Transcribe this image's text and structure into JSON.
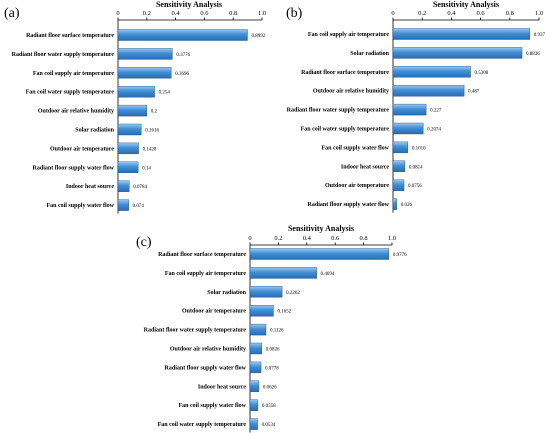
{
  "chart_data": [
    {
      "type": "bar",
      "orientation": "horizontal",
      "panel_label": "(a)",
      "title": "Sensitivity Analysis",
      "xlim": [
        0,
        1.0
      ],
      "ticks": [
        "0",
        "0.2",
        "0.4",
        "0.6",
        "0.8",
        "1.0"
      ],
      "color": "#3f8fd6",
      "categories": [
        "Radiant floor surface temperature",
        "Radiant floor water supply temperature",
        "Fan coil supply air temperature",
        "Fan coil water supply temperature",
        "Outdoor air relative humidity",
        "Solar radiation",
        "Outdoor air temperature",
        "Radiant floor supply water flow",
        "Indoor heat source",
        "Fan coil supply water flow"
      ],
      "values": [
        0.8992,
        0.3776,
        0.3696,
        0.254,
        0.2,
        0.1616,
        0.1428,
        0.14,
        0.0784,
        0.074
      ],
      "value_labels": [
        "0.8992",
        "0.3776",
        "0.3696",
        "0.254",
        "0.2",
        "0.1616",
        "0.1428",
        "0.14",
        "0.0784",
        "0.074"
      ]
    },
    {
      "type": "bar",
      "orientation": "horizontal",
      "panel_label": "(b)",
      "title": "Sensitivity Analysis",
      "xlim": [
        0,
        1.0
      ],
      "ticks": [
        "0",
        "0.2",
        "0.4",
        "0.6",
        "0.8",
        "1.0"
      ],
      "color": "#3f8fd6",
      "categories": [
        "Fan coil supply air temperature",
        "Solar radiation",
        "Radiant floor surface temperature",
        "Outdoor air relative humidity",
        "Radiant floor water supply temperature",
        "Fan coil water supply temperature",
        "Fan coil supply water flow",
        "Indoor heat source",
        "Outdoor air temperature",
        "Radiant floor supply water flow"
      ],
      "values": [
        0.937,
        0.8836,
        0.5308,
        0.487,
        0.227,
        0.2074,
        0.1016,
        0.0814,
        0.0756,
        0.026
      ],
      "value_labels": [
        "0.937",
        "0.8836",
        "0.5308",
        "0.487",
        "0.227",
        "0.2074",
        "0.1016",
        "0.0814",
        "0.0756",
        "0.026"
      ]
    },
    {
      "type": "bar",
      "orientation": "horizontal",
      "panel_label": "(c)",
      "title": "Sensitivity Analysis",
      "xlim": [
        0,
        1.0
      ],
      "ticks": [
        "0",
        "0.2",
        "0.4",
        "0.6",
        "0.8",
        "1.0"
      ],
      "color": "#3f8fd6",
      "categories": [
        "Radiant floor surface temperature",
        "Fan coil supply air temperature",
        "Solar radiation",
        "Outdoor air temperature",
        "Radiant floor water supply temperature",
        "Outdoor air relative humidity",
        "Radiant floor supply water flow",
        "Indoor heat source",
        "Fan coil supply water flow",
        "Fan coil water supply temperature"
      ],
      "values": [
        0.9776,
        0.4694,
        0.2262,
        0.1652,
        0.1126,
        0.0826,
        0.0778,
        0.0626,
        0.0558,
        0.0534
      ],
      "value_labels": [
        "0.9776",
        "0.4694",
        "0.2262",
        "0.1652",
        "0.1126",
        "0.0826",
        "0.0778",
        "0.0626",
        "0.0558",
        "0.0534"
      ]
    }
  ]
}
